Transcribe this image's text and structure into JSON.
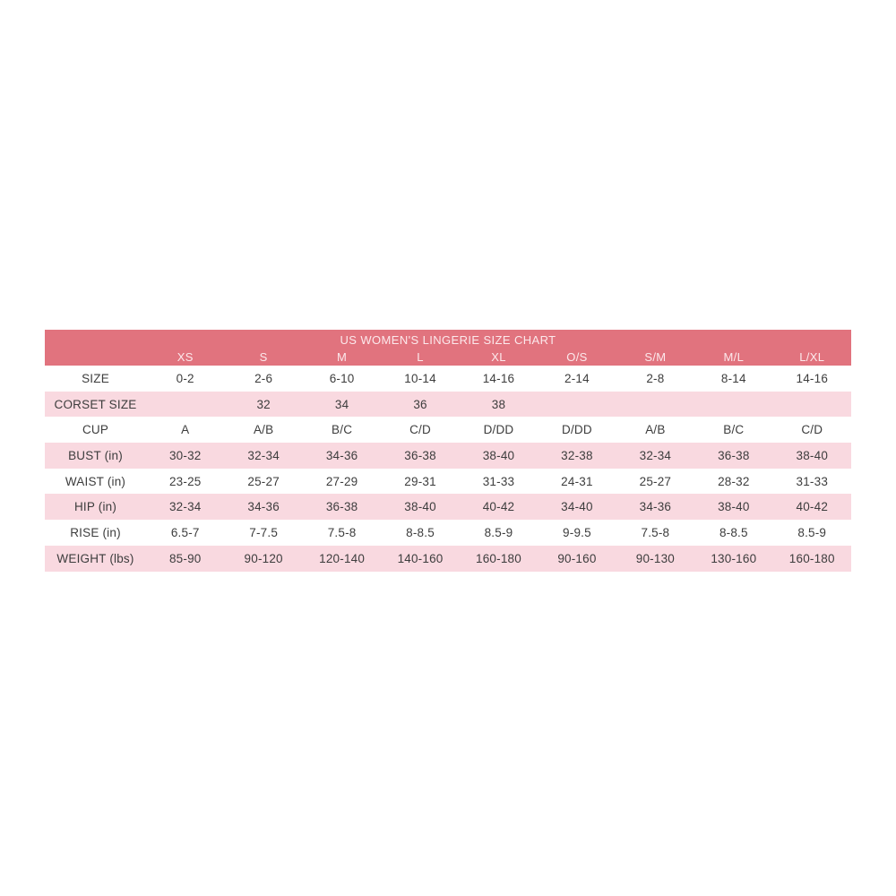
{
  "chart_data": {
    "type": "table",
    "title": "US WOMEN'S LINGERIE SIZE CHART",
    "column_headers": [
      "XS",
      "S",
      "M",
      "L",
      "XL",
      "O/S",
      "S/M",
      "M/L",
      "L/XL"
    ],
    "rows": [
      {
        "label": "SIZE",
        "values": [
          "0-2",
          "2-6",
          "6-10",
          "10-14",
          "14-16",
          "2-14",
          "2-8",
          "8-14",
          "14-16"
        ]
      },
      {
        "label": "CORSET SIZE",
        "values": [
          "",
          "32",
          "34",
          "36",
          "38",
          "",
          "",
          "",
          ""
        ]
      },
      {
        "label": "CUP",
        "values": [
          "A",
          "A/B",
          "B/C",
          "C/D",
          "D/DD",
          "D/DD",
          "A/B",
          "B/C",
          "C/D"
        ]
      },
      {
        "label": "BUST (in)",
        "values": [
          "30-32",
          "32-34",
          "34-36",
          "36-38",
          "38-40",
          "32-38",
          "32-34",
          "36-38",
          "38-40"
        ]
      },
      {
        "label": "WAIST (in)",
        "values": [
          "23-25",
          "25-27",
          "27-29",
          "29-31",
          "31-33",
          "24-31",
          "25-27",
          "28-32",
          "31-33"
        ]
      },
      {
        "label": "HIP (in)",
        "values": [
          "32-34",
          "34-36",
          "36-38",
          "38-40",
          "40-42",
          "34-40",
          "34-36",
          "38-40",
          "40-42"
        ]
      },
      {
        "label": "RISE (in)",
        "values": [
          "6.5-7",
          "7-7.5",
          "7.5-8",
          "8-8.5",
          "8.5-9",
          "9-9.5",
          "7.5-8",
          "8-8.5",
          "8.5-9"
        ]
      },
      {
        "label": "WEIGHT (lbs)",
        "values": [
          "85-90",
          "90-120",
          "120-140",
          "140-160",
          "160-180",
          "90-160",
          "90-130",
          "130-160",
          "160-180"
        ]
      }
    ],
    "layout": {
      "striped": true,
      "stripe_pattern": "white/pink alternating starting white",
      "header_position": "top"
    },
    "colors": {
      "header_bg": "#e1737e",
      "header_text": "#fce9ec",
      "row_bg": "#ffffff",
      "row_alt_bg": "#f9d9e0",
      "text": "#3d3d3d"
    }
  }
}
